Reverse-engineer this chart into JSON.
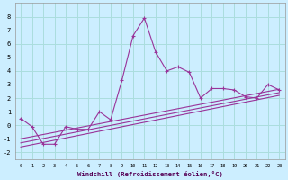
{
  "title": "",
  "xlabel": "Windchill (Refroidissement éolien,°C)",
  "background_color": "#cceeff",
  "grid_color": "#aadddd",
  "line_color": "#993399",
  "x_values": [
    0,
    1,
    2,
    3,
    4,
    5,
    6,
    7,
    8,
    9,
    10,
    11,
    12,
    13,
    14,
    15,
    16,
    17,
    18,
    19,
    20,
    21,
    22,
    23
  ],
  "series1": [
    0.5,
    -0.1,
    -1.4,
    -1.4,
    -0.1,
    -0.3,
    -0.3,
    1.0,
    0.4,
    3.3,
    6.6,
    7.9,
    5.4,
    4.0,
    4.3,
    3.9,
    2.0,
    2.7,
    2.7,
    2.6,
    2.1,
    2.0,
    3.0,
    2.6
  ],
  "line2_y": [
    -1.6,
    2.2
  ],
  "line3_y": [
    -1.3,
    2.4
  ],
  "line4_y": [
    -1.0,
    2.65
  ],
  "ylim": [
    -2.5,
    9.0
  ],
  "xlim": [
    -0.5,
    23.5
  ],
  "yticks": [
    -2,
    -1,
    0,
    1,
    2,
    3,
    4,
    5,
    6,
    7,
    8
  ],
  "xticks": [
    0,
    1,
    2,
    3,
    4,
    5,
    6,
    7,
    8,
    9,
    10,
    11,
    12,
    13,
    14,
    15,
    16,
    17,
    18,
    19,
    20,
    21,
    22,
    23
  ]
}
